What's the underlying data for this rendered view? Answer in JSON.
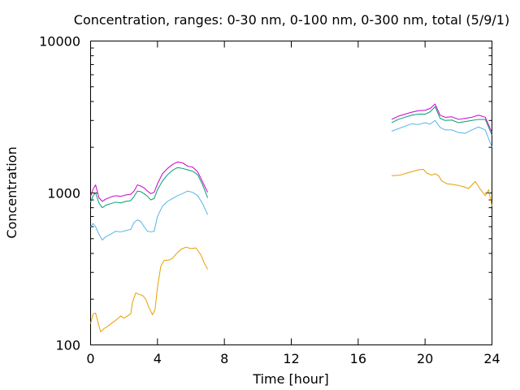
{
  "chart_data": {
    "type": "line",
    "title": "Concentration, ranges: 0-30 nm, 0-100 nm, 0-300 nm, total (5/9/1)",
    "xlabel": "Time [hour]",
    "ylabel": "Concentration",
    "xlim": [
      0,
      24
    ],
    "ylim": [
      100,
      10000
    ],
    "yscale": "log",
    "grid": false,
    "x_ticks": [
      0,
      4,
      8,
      12,
      16,
      20,
      24
    ],
    "x_tick_labels": [
      "0",
      "4",
      "8",
      "12",
      "16",
      "20",
      "24"
    ],
    "y_ticks": [
      100,
      1000,
      10000
    ],
    "y_tick_labels": [
      "100",
      "1000",
      "10000"
    ],
    "series": [
      {
        "color": "#e69f00",
        "segments": [
          [
            [
              0,
              138
            ],
            [
              0.15,
              160
            ],
            [
              0.3,
              162
            ],
            [
              0.45,
              140
            ],
            [
              0.6,
              122
            ],
            [
              0.8,
              128
            ],
            [
              1.0,
              132
            ],
            [
              1.3,
              140
            ],
            [
              1.6,
              148
            ],
            [
              1.8,
              155
            ],
            [
              2.0,
              150
            ],
            [
              2.2,
              155
            ],
            [
              2.4,
              160
            ],
            [
              2.5,
              190
            ],
            [
              2.7,
              220
            ],
            [
              2.9,
              215
            ],
            [
              3.1,
              212
            ],
            [
              3.3,
              200
            ],
            [
              3.5,
              175
            ],
            [
              3.7,
              158
            ],
            [
              3.85,
              170
            ],
            [
              4.0,
              240
            ],
            [
              4.2,
              330
            ],
            [
              4.4,
              360
            ],
            [
              4.7,
              362
            ],
            [
              4.9,
              372
            ],
            [
              5.1,
              395
            ],
            [
              5.4,
              425
            ],
            [
              5.7,
              440
            ],
            [
              6.0,
              430
            ],
            [
              6.3,
              435
            ],
            [
              6.6,
              390
            ],
            [
              6.8,
              345
            ],
            [
              7.0,
              315
            ]
          ],
          [
            [
              18.0,
              1300
            ],
            [
              18.5,
              1310
            ],
            [
              19.0,
              1360
            ],
            [
              19.3,
              1390
            ],
            [
              19.6,
              1420
            ],
            [
              19.9,
              1430
            ],
            [
              20.1,
              1350
            ],
            [
              20.4,
              1310
            ],
            [
              20.6,
              1340
            ],
            [
              20.8,
              1300
            ],
            [
              21.0,
              1200
            ],
            [
              21.3,
              1150
            ],
            [
              21.6,
              1140
            ],
            [
              22.0,
              1120
            ],
            [
              22.3,
              1100
            ],
            [
              22.6,
              1070
            ],
            [
              23.0,
              1190
            ],
            [
              23.3,
              1060
            ],
            [
              23.6,
              960
            ],
            [
              23.8,
              1050
            ],
            [
              24.0,
              820
            ]
          ]
        ]
      },
      {
        "color": "#56b4e9",
        "segments": [
          [
            [
              0,
              600
            ],
            [
              0.15,
              630
            ],
            [
              0.3,
              600
            ],
            [
              0.5,
              535
            ],
            [
              0.7,
              490
            ],
            [
              0.9,
              515
            ],
            [
              1.2,
              535
            ],
            [
              1.5,
              560
            ],
            [
              1.8,
              555
            ],
            [
              2.1,
              565
            ],
            [
              2.4,
              575
            ],
            [
              2.6,
              640
            ],
            [
              2.8,
              665
            ],
            [
              3.0,
              650
            ],
            [
              3.2,
              600
            ],
            [
              3.4,
              560
            ],
            [
              3.6,
              555
            ],
            [
              3.8,
              560
            ],
            [
              4.0,
              700
            ],
            [
              4.3,
              820
            ],
            [
              4.6,
              880
            ],
            [
              4.9,
              920
            ],
            [
              5.2,
              960
            ],
            [
              5.5,
              990
            ],
            [
              5.8,
              1030
            ],
            [
              6.1,
              1010
            ],
            [
              6.4,
              960
            ],
            [
              6.7,
              850
            ],
            [
              7.0,
              720
            ]
          ],
          [
            [
              18.0,
              2550
            ],
            [
              18.4,
              2650
            ],
            [
              18.8,
              2750
            ],
            [
              19.2,
              2850
            ],
            [
              19.6,
              2820
            ],
            [
              20.0,
              2900
            ],
            [
              20.3,
              2840
            ],
            [
              20.6,
              3000
            ],
            [
              20.9,
              2700
            ],
            [
              21.2,
              2600
            ],
            [
              21.6,
              2600
            ],
            [
              22.0,
              2500
            ],
            [
              22.4,
              2470
            ],
            [
              22.8,
              2600
            ],
            [
              23.2,
              2720
            ],
            [
              23.6,
              2600
            ],
            [
              24.0,
              2000
            ]
          ]
        ]
      },
      {
        "color": "#009e73",
        "segments": [
          [
            [
              0,
              870
            ],
            [
              0.15,
              960
            ],
            [
              0.3,
              1000
            ],
            [
              0.5,
              860
            ],
            [
              0.7,
              800
            ],
            [
              0.9,
              830
            ],
            [
              1.2,
              850
            ],
            [
              1.5,
              870
            ],
            [
              1.8,
              860
            ],
            [
              2.1,
              880
            ],
            [
              2.4,
              890
            ],
            [
              2.6,
              950
            ],
            [
              2.8,
              1030
            ],
            [
              3.0,
              1020
            ],
            [
              3.2,
              990
            ],
            [
              3.4,
              950
            ],
            [
              3.6,
              900
            ],
            [
              3.8,
              920
            ],
            [
              4.0,
              1050
            ],
            [
              4.3,
              1200
            ],
            [
              4.6,
              1320
            ],
            [
              4.9,
              1410
            ],
            [
              5.2,
              1470
            ],
            [
              5.5,
              1450
            ],
            [
              5.8,
              1420
            ],
            [
              6.1,
              1390
            ],
            [
              6.4,
              1320
            ],
            [
              6.7,
              1130
            ],
            [
              7.0,
              930
            ]
          ],
          [
            [
              18.0,
              2900
            ],
            [
              18.4,
              3050
            ],
            [
              18.8,
              3150
            ],
            [
              19.2,
              3250
            ],
            [
              19.6,
              3300
            ],
            [
              20.0,
              3300
            ],
            [
              20.3,
              3420
            ],
            [
              20.6,
              3700
            ],
            [
              20.9,
              3100
            ],
            [
              21.2,
              3000
            ],
            [
              21.6,
              3020
            ],
            [
              22.0,
              2900
            ],
            [
              22.4,
              2950
            ],
            [
              22.8,
              3000
            ],
            [
              23.2,
              3050
            ],
            [
              23.6,
              3050
            ],
            [
              24.0,
              2400
            ]
          ]
        ]
      },
      {
        "color": "#cc00cc",
        "segments": [
          [
            [
              0,
              950
            ],
            [
              0.15,
              1060
            ],
            [
              0.3,
              1130
            ],
            [
              0.5,
              930
            ],
            [
              0.7,
              880
            ],
            [
              0.9,
              910
            ],
            [
              1.2,
              940
            ],
            [
              1.5,
              960
            ],
            [
              1.8,
              950
            ],
            [
              2.1,
              970
            ],
            [
              2.4,
              980
            ],
            [
              2.6,
              1030
            ],
            [
              2.8,
              1130
            ],
            [
              3.0,
              1110
            ],
            [
              3.2,
              1080
            ],
            [
              3.4,
              1030
            ],
            [
              3.6,
              990
            ],
            [
              3.8,
              1010
            ],
            [
              4.0,
              1150
            ],
            [
              4.3,
              1340
            ],
            [
              4.6,
              1450
            ],
            [
              4.9,
              1540
            ],
            [
              5.2,
              1600
            ],
            [
              5.5,
              1580
            ],
            [
              5.8,
              1500
            ],
            [
              6.1,
              1480
            ],
            [
              6.4,
              1380
            ],
            [
              6.7,
              1180
            ],
            [
              7.0,
              1010
            ]
          ],
          [
            [
              18.0,
              3050
            ],
            [
              18.4,
              3200
            ],
            [
              18.8,
              3300
            ],
            [
              19.2,
              3400
            ],
            [
              19.6,
              3480
            ],
            [
              20.0,
              3500
            ],
            [
              20.3,
              3600
            ],
            [
              20.6,
              3850
            ],
            [
              20.9,
              3250
            ],
            [
              21.2,
              3150
            ],
            [
              21.6,
              3170
            ],
            [
              22.0,
              3050
            ],
            [
              22.4,
              3100
            ],
            [
              22.8,
              3150
            ],
            [
              23.2,
              3250
            ],
            [
              23.6,
              3150
            ],
            [
              24.0,
              2500
            ]
          ]
        ]
      }
    ]
  }
}
